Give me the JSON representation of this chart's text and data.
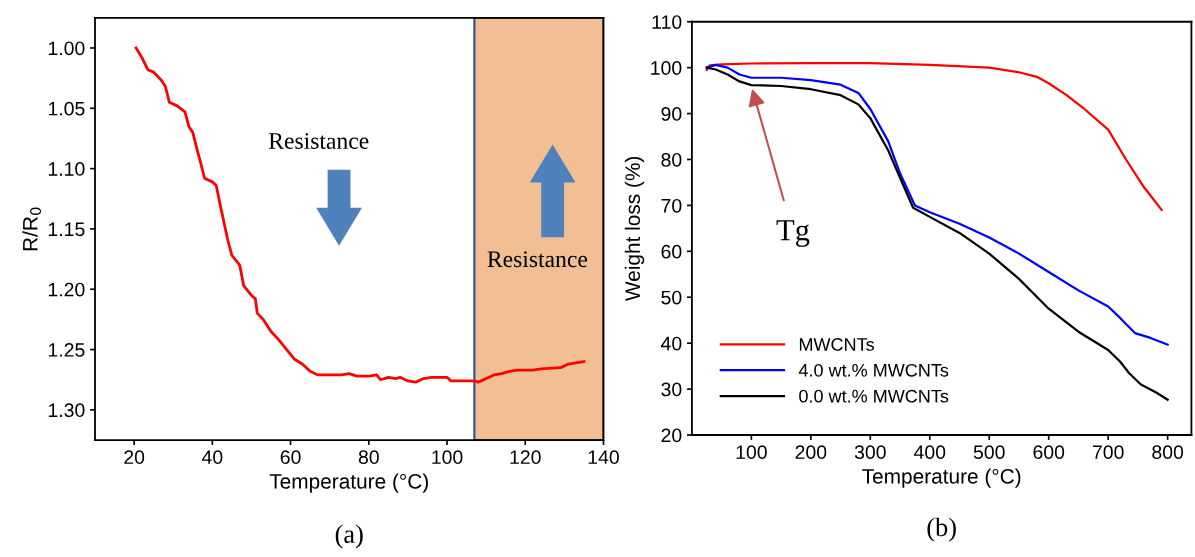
{
  "chart_data": [
    {
      "type": "line",
      "xlabel": "Temperature (°C)",
      "ylabel": "R/R$_{0}$",
      "xlim": [
        10,
        140
      ],
      "xticks": [
        20,
        40,
        60,
        80,
        100,
        120,
        140
      ],
      "ylim": [
        1.325,
        0.975
      ],
      "yticks": [
        {
          "value": 1.0,
          "label": "1.00"
        },
        {
          "value": 1.05,
          "label": "1.05"
        },
        {
          "value": 1.1,
          "label": "1.10"
        },
        {
          "value": 1.15,
          "label": "1.15"
        },
        {
          "value": 1.2,
          "label": "1.20"
        },
        {
          "value": 1.25,
          "label": "1.25"
        },
        {
          "value": 1.3,
          "label": "1.30"
        }
      ],
      "grid": false,
      "legend": false,
      "bands": [
        {
          "axis": "x",
          "from": 107,
          "to": 140,
          "color": "#f2bf94"
        }
      ],
      "annotations": [
        "Resistance",
        "Resistance",
        "(a)"
      ],
      "series": [
        {
          "color": "#ff0000",
          "x": [
            20.5,
            22,
            23.5,
            25,
            27,
            28,
            29,
            31,
            33,
            34,
            35,
            36,
            37,
            38,
            40,
            41,
            42,
            43,
            44,
            45,
            47,
            48,
            50,
            51,
            51.5,
            53,
            55,
            57,
            59,
            61,
            63,
            65,
            67,
            70,
            73,
            75,
            77,
            80,
            82,
            83,
            85,
            87,
            88,
            90,
            92,
            94,
            96,
            100,
            101,
            104,
            107,
            108,
            110,
            112,
            114,
            116,
            118,
            122,
            124,
            129,
            131,
            135
          ],
          "values": [
            1.0,
            1.008,
            1.018,
            1.02,
            1.027,
            1.032,
            1.045,
            1.048,
            1.053,
            1.065,
            1.07,
            1.083,
            1.095,
            1.108,
            1.111,
            1.114,
            1.13,
            1.145,
            1.16,
            1.172,
            1.18,
            1.197,
            1.205,
            1.208,
            1.22,
            1.225,
            1.235,
            1.242,
            1.25,
            1.258,
            1.262,
            1.268,
            1.271,
            1.271,
            1.271,
            1.27,
            1.272,
            1.272,
            1.271,
            1.275,
            1.273,
            1.274,
            1.273,
            1.276,
            1.277,
            1.274,
            1.273,
            1.273,
            1.276,
            1.276,
            1.276,
            1.277,
            1.274,
            1.271,
            1.27,
            1.268,
            1.267,
            1.267,
            1.266,
            1.265,
            1.262,
            1.26
          ]
        }
      ]
    },
    {
      "type": "line",
      "xlabel": "Temperature (°C)",
      "ylabel": "Weight loss (%)",
      "xlim": [
        0,
        840
      ],
      "xticks": [
        100,
        200,
        300,
        400,
        500,
        600,
        700,
        800
      ],
      "ylim": [
        20,
        110
      ],
      "yticks": [
        20,
        30,
        40,
        50,
        60,
        70,
        80,
        90,
        100,
        110
      ],
      "grid": false,
      "legend": "bottom left",
      "annotations": [
        {
          "text": "Tg",
          "x": 100,
          "y": 96
        },
        "(b)"
      ],
      "series": [
        {
          "name": "MWCNTs",
          "color": "#ff0000",
          "x": [
            25,
            30,
            50,
            100,
            200,
            300,
            400,
            500,
            550,
            580,
            600,
            630,
            660,
            700,
            730,
            760,
            790
          ],
          "values": [
            99.5,
            100.5,
            100.7,
            100.9,
            101,
            101,
            100.6,
            100.0,
            99,
            98,
            96.6,
            94,
            91,
            86.5,
            80,
            74,
            69
          ]
        },
        {
          "name": "4.0 wt.% MWCNTs",
          "color": "#0000ff",
          "x": [
            25,
            40,
            60,
            80,
            100,
            150,
            200,
            250,
            280,
            300,
            330,
            350,
            375,
            400,
            450,
            500,
            550,
            600,
            650,
            700,
            720,
            745,
            770,
            800
          ],
          "values": [
            100,
            100.6,
            100,
            98.5,
            97.8,
            97.8,
            97.3,
            96.3,
            94.5,
            91,
            84,
            77,
            70,
            68.5,
            66,
            63,
            59.5,
            55.5,
            51.5,
            48,
            45.5,
            42.2,
            41.2,
            39.7
          ]
        },
        {
          "name": "0.0 wt.% MWCNTs",
          "color": "#000000",
          "x": [
            25,
            40,
            60,
            80,
            100,
            150,
            200,
            250,
            280,
            300,
            330,
            350,
            372,
            400,
            450,
            500,
            550,
            600,
            650,
            700,
            720,
            735,
            755,
            780,
            800
          ],
          "values": [
            100,
            99.6,
            98.5,
            97,
            96.2,
            96,
            95.3,
            94,
            92,
            89,
            82,
            76,
            69.5,
            67.5,
            64,
            59.5,
            54,
            47.5,
            42.5,
            38.5,
            36,
            33.5,
            31,
            29.3,
            27.7
          ]
        }
      ]
    }
  ]
}
